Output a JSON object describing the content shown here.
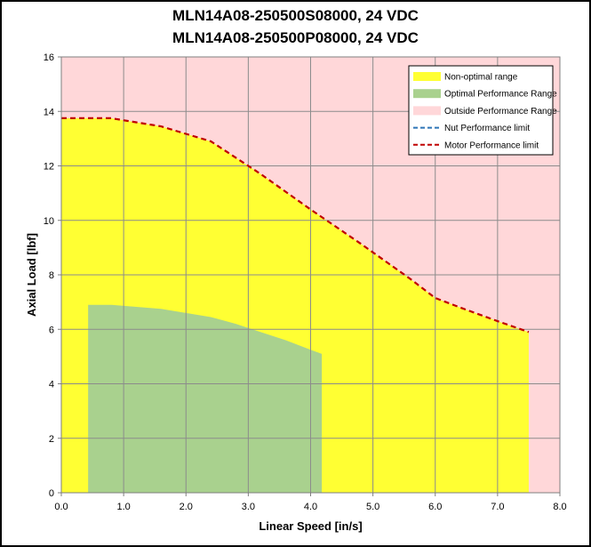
{
  "chart_data": {
    "type": "area",
    "title_line1": "MLN14A08-250500S08000, 24 VDC",
    "title_line2": "MLN14A08-250500P08000, 24 VDC",
    "xlabel": "Linear Speed [in/s]",
    "ylabel": "Axial Load [lbf]",
    "xlim": [
      0,
      8
    ],
    "ylim": [
      0,
      16
    ],
    "x_ticks": [
      "0.0",
      "1.0",
      "2.0",
      "3.0",
      "4.0",
      "5.0",
      "6.0",
      "7.0",
      "8.0"
    ],
    "y_ticks": [
      "0",
      "2",
      "4",
      "6",
      "8",
      "10",
      "12",
      "14",
      "16"
    ],
    "grid": true,
    "legend_position": "top-right",
    "series": [
      {
        "name": "Non-optimal range",
        "kind": "area",
        "color": "#ffff33",
        "x": [
          0,
          0.4,
          0.8,
          1.6,
          2.4,
          3.2,
          4.0,
          4.8,
          5.6,
          6.0,
          6.4,
          7.0,
          7.5
        ],
        "y": [
          13.75,
          13.75,
          13.75,
          13.45,
          12.9,
          11.7,
          10.4,
          9.15,
          7.85,
          7.15,
          6.8,
          6.3,
          5.9
        ]
      },
      {
        "name": "Optimal Performance Range",
        "kind": "area",
        "color": "#a9d18e",
        "x": [
          0.43,
          0.8,
          1.6,
          2.0,
          2.4,
          2.8,
          3.2,
          3.6,
          4.0,
          4.18
        ],
        "y": [
          6.9,
          6.9,
          6.75,
          6.6,
          6.45,
          6.2,
          5.9,
          5.6,
          5.25,
          5.1
        ]
      },
      {
        "name": "Outside Performance Range",
        "kind": "background",
        "color": "#ffd7d9"
      },
      {
        "name": "Nut Performance limit",
        "kind": "line",
        "color": "#2e75b6",
        "x": [],
        "y": []
      },
      {
        "name": "Motor Performance limit",
        "kind": "line",
        "color": "#c00000",
        "x": [
          0,
          0.4,
          0.8,
          1.6,
          2.4,
          3.2,
          4.0,
          4.8,
          5.6,
          6.0,
          6.4,
          7.0,
          7.5
        ],
        "y": [
          13.75,
          13.75,
          13.75,
          13.45,
          12.9,
          11.7,
          10.4,
          9.15,
          7.85,
          7.15,
          6.8,
          6.3,
          5.9
        ]
      }
    ]
  }
}
